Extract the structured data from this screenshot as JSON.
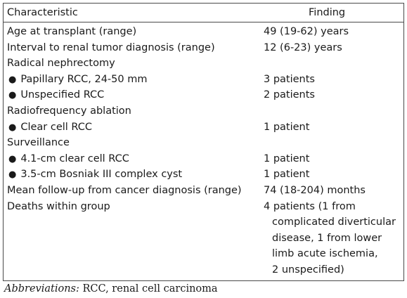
{
  "table": {
    "header": {
      "characteristic": "Characteristic",
      "finding": "Finding"
    },
    "rows": [
      {
        "label": "Age at transplant (range)",
        "value": "49 (19-62) years",
        "bullet": false
      },
      {
        "label": "Interval to renal tumor diagnosis (range)",
        "value": "12 (6-23) years",
        "bullet": false
      },
      {
        "label": "Radical nephrectomy",
        "value": "",
        "bullet": false
      },
      {
        "label": "Papillary RCC, 24-50 mm",
        "value": "3 patients",
        "bullet": true
      },
      {
        "label": "Unspecified RCC",
        "value": "2 patients",
        "bullet": true
      },
      {
        "label": "Radiofrequency ablation",
        "value": "",
        "bullet": false
      },
      {
        "label": "Clear cell RCC",
        "value": "1 patient",
        "bullet": true
      },
      {
        "label": "Surveillance",
        "value": "",
        "bullet": false
      },
      {
        "label": "4.1-cm clear cell RCC",
        "value": "1 patient",
        "bullet": true
      },
      {
        "label": "3.5-cm Bosniak III complex cyst",
        "value": "1 patient",
        "bullet": true
      },
      {
        "label": "Mean follow-up from cancer diagnosis (range)",
        "value": "74 (18-204) months",
        "bullet": false
      }
    ],
    "last_row": {
      "label": "Deaths within group",
      "value_lines": [
        "4 patients (1 from",
        "complicated diverticular",
        "disease, 1 from lower",
        "limb acute ischemia,",
        "2 unspecified)"
      ]
    },
    "bullet_glyph": "●"
  },
  "footnote": {
    "prefix": "Abbreviations:",
    "text": " RCC, renal cell carcinoma"
  }
}
